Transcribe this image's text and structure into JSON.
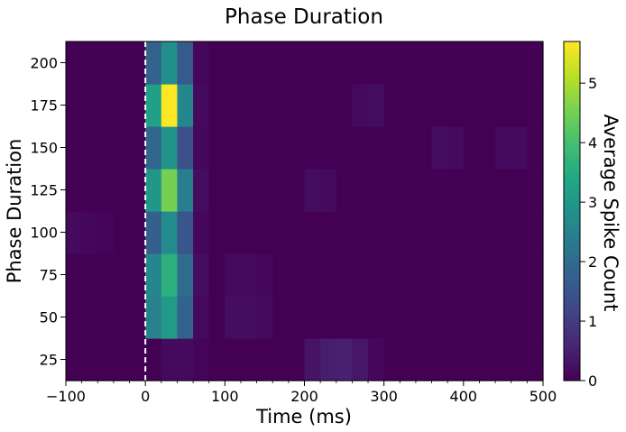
{
  "chart_data": {
    "type": "heatmap",
    "title": "Phase Duration",
    "xlabel": "Time (ms)",
    "ylabel": "Phase Duration",
    "colorbar_label": "Average Spike Count",
    "colormap": "viridis",
    "xlim": [
      -100,
      500
    ],
    "ylim": [
      12.5,
      212.5
    ],
    "clim": [
      0,
      5.7
    ],
    "x_ticks": [
      -100,
      0,
      100,
      200,
      300,
      400,
      500
    ],
    "x_tick_labels": [
      "−100",
      "0",
      "100",
      "200",
      "300",
      "400",
      "500"
    ],
    "y_ticks": [
      25,
      50,
      75,
      100,
      125,
      150,
      175,
      200
    ],
    "y_tick_labels": [
      "25",
      "50",
      "75",
      "100",
      "125",
      "150",
      "175",
      "200"
    ],
    "colorbar_ticks": [
      0,
      1,
      2,
      3,
      4,
      5
    ],
    "colorbar_tick_labels": [
      "0",
      "1",
      "2",
      "3",
      "4",
      "5"
    ],
    "bin_width_ms": 20,
    "x_bin_starts": [
      -100,
      -80,
      -60,
      -40,
      -20,
      0,
      20,
      40,
      60,
      80,
      100,
      120,
      140,
      160,
      180,
      200,
      220,
      240,
      260,
      280,
      300,
      320,
      340,
      360,
      380,
      400,
      420,
      440,
      460,
      480
    ],
    "y_bin_centers": [
      25,
      50,
      75,
      100,
      125,
      150,
      175,
      200
    ],
    "y_bin_height": 25,
    "values": [
      [
        0,
        0,
        0,
        0,
        0,
        0,
        0.15,
        0.15,
        0.05,
        0,
        0,
        0,
        0,
        0,
        0,
        0.3,
        0.45,
        0.5,
        0.35,
        0.1,
        0,
        0,
        0,
        0,
        0,
        0,
        0,
        0,
        0,
        0
      ],
      [
        0,
        0,
        0,
        0,
        0,
        2.5,
        3.1,
        1.8,
        0.15,
        0,
        0.2,
        0.2,
        0.15,
        0,
        0,
        0,
        0,
        0,
        0,
        0,
        0,
        0,
        0,
        0,
        0,
        0,
        0,
        0,
        0,
        0
      ],
      [
        0,
        0,
        0,
        0,
        0,
        2.6,
        3.6,
        2.0,
        0.2,
        0,
        0.15,
        0.15,
        0.1,
        0,
        0,
        0,
        0,
        0,
        0,
        0,
        0,
        0,
        0,
        0,
        0,
        0,
        0,
        0,
        0,
        0
      ],
      [
        0.15,
        0.1,
        0.05,
        0,
        0,
        1.7,
        2.7,
        1.5,
        0.1,
        0,
        0,
        0,
        0,
        0,
        0,
        0,
        0,
        0,
        0,
        0,
        0,
        0,
        0,
        0,
        0,
        0,
        0,
        0,
        0,
        0
      ],
      [
        0,
        0,
        0,
        0,
        0,
        3.0,
        4.5,
        2.4,
        0.2,
        0,
        0,
        0,
        0,
        0,
        0,
        0.2,
        0.15,
        0,
        0,
        0,
        0,
        0,
        0,
        0,
        0,
        0,
        0,
        0,
        0,
        0
      ],
      [
        0,
        0,
        0,
        0,
        0,
        1.9,
        2.9,
        1.4,
        0.1,
        0,
        0,
        0,
        0,
        0,
        0,
        0,
        0,
        0,
        0,
        0,
        0,
        0,
        0,
        0.2,
        0.15,
        0,
        0,
        0.15,
        0.15,
        0
      ],
      [
        0,
        0,
        0,
        0,
        0,
        3.2,
        5.7,
        2.6,
        0.15,
        0,
        0,
        0,
        0,
        0,
        0,
        0,
        0,
        0,
        0.15,
        0.2,
        0,
        0,
        0,
        0,
        0,
        0,
        0,
        0,
        0,
        0
      ],
      [
        0,
        0,
        0,
        0,
        0,
        1.8,
        2.8,
        1.6,
        0.1,
        0,
        0,
        0,
        0,
        0,
        0,
        0,
        0,
        0,
        0,
        0,
        0,
        0,
        0,
        0,
        0,
        0,
        0,
        0,
        0,
        0
      ]
    ],
    "annotations": [
      {
        "type": "vertical-dashed-line",
        "x": 0,
        "color": "#ffffff"
      }
    ],
    "grid": false
  }
}
